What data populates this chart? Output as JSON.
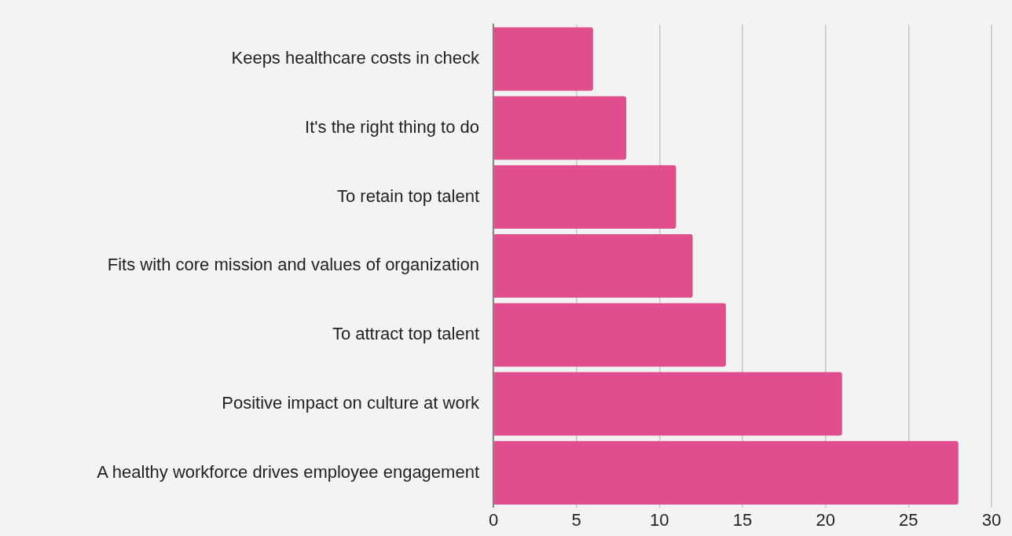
{
  "chart_data": {
    "type": "bar",
    "orientation": "horizontal",
    "categories": [
      "Keeps healthcare costs in check",
      "It's the right thing to do",
      "To retain top talent",
      "Fits with core mission and values of organization",
      "To attract top talent",
      "Positive impact on culture at work",
      "A healthy workforce drives employee engagement"
    ],
    "values": [
      6,
      8,
      11,
      12,
      14,
      21,
      28
    ],
    "color": "#e04e8e",
    "xlim": [
      0,
      30
    ],
    "xticks": [
      0,
      5,
      10,
      15,
      20,
      25,
      30
    ],
    "grid": "x",
    "legend": false
  }
}
